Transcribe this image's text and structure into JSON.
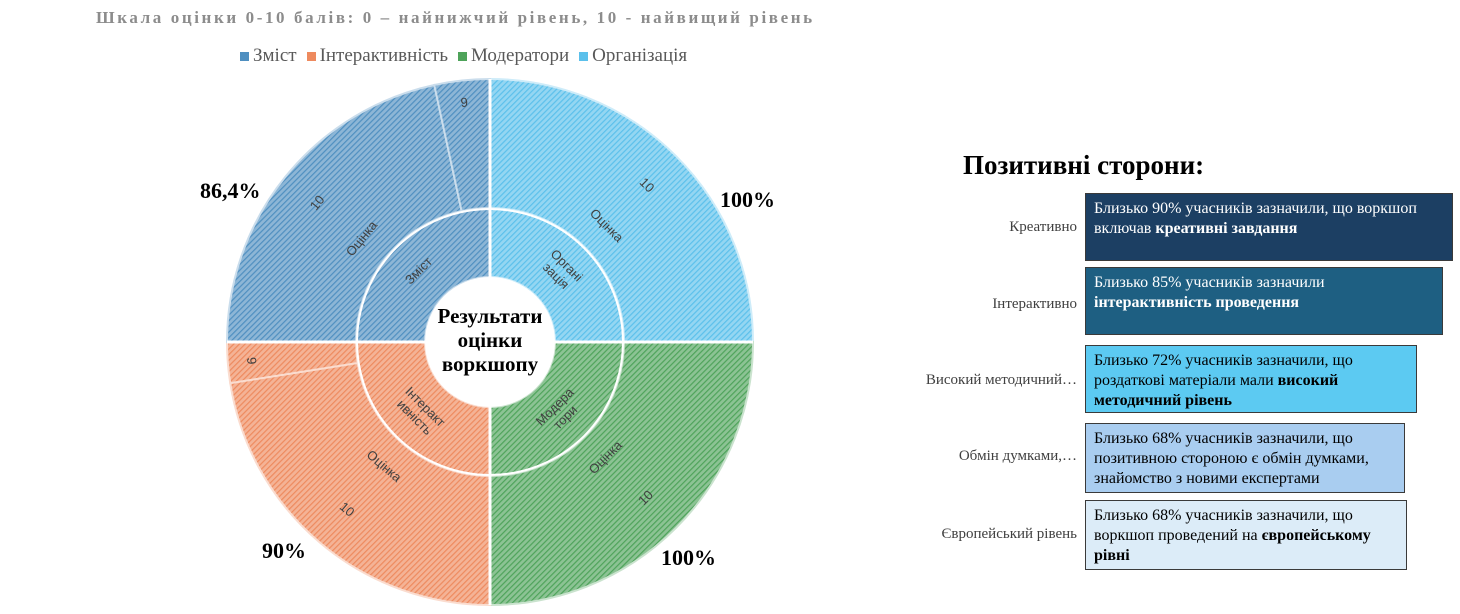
{
  "scale_title": "Шкала оцінки 0-10 балів: 0 – найнижчий рівень, 10  - найвищий рівень",
  "center_label": [
    "Результати",
    "оцінки",
    "воркшопу"
  ],
  "ring_label": "Оцінка",
  "chart_data": {
    "type": "sunburst",
    "legend": [
      {
        "name": "Зміст",
        "color": "#4f8fc0"
      },
      {
        "name": "Інтерактивність",
        "color": "#ee8a5e"
      },
      {
        "name": "Модератори",
        "color": "#4ea35a"
      },
      {
        "name": "Організація",
        "color": "#5bc0eb"
      }
    ],
    "segments": [
      {
        "name": "Організація",
        "inner_label": [
          "Органі",
          "зація"
        ],
        "color": "#5bc0eb",
        "percent_label": "100%",
        "outer": [
          {
            "score": "10",
            "share": 1.0
          }
        ]
      },
      {
        "name": "Модератори",
        "inner_label": [
          "Модера",
          "тори"
        ],
        "color": "#4ea35a",
        "percent_label": "100%",
        "outer": [
          {
            "score": "10",
            "share": 1.0
          }
        ]
      },
      {
        "name": "Інтерактивність",
        "inner_label": [
          "Інтеракт",
          "ивність"
        ],
        "color": "#ee8a5e",
        "percent_label": "90%",
        "outer": [
          {
            "score": "10",
            "share": 0.9
          },
          {
            "score": "9",
            "share": 0.1
          }
        ]
      },
      {
        "name": "Зміст",
        "inner_label": [
          "Зміст"
        ],
        "color": "#4f8fc0",
        "percent_label": "86,4%",
        "outer": [
          {
            "score": "10",
            "share": 0.864
          },
          {
            "score": "9",
            "share": 0.136
          }
        ]
      }
    ]
  },
  "positives": {
    "title": "Позитивні сторони:",
    "rows": [
      {
        "label": "Креативно",
        "text_parts": [
          {
            "text": "Близько 90% учасників зазначили, що воркшоп включав ",
            "bold": false
          },
          {
            "text": "креативні завдання",
            "bold": true
          }
        ],
        "bg": "#1c3f63",
        "fg": "#ffffff"
      },
      {
        "label": "Інтерактивно",
        "text_parts": [
          {
            "text": "Близько 85% учасників зазначили ",
            "bold": false
          },
          {
            "text": "інтерактивність проведення",
            "bold": true
          }
        ],
        "bg": "#1e5f82",
        "fg": "#ffffff"
      },
      {
        "label": "Високий методичний…",
        "text_parts": [
          {
            "text": "Близько 72% учасників зазначили, що роздаткові матеріали мали ",
            "bold": false
          },
          {
            "text": "високий методичний рівень",
            "bold": true
          }
        ],
        "bg": "#5ccaf2",
        "fg": "#000000"
      },
      {
        "label": "Обмін думками,…",
        "text_parts": [
          {
            "text": "Близько 68% учасників зазначили, що позитивною стороною є обмін думками, знайомство з новими експертами",
            "bold": false
          }
        ],
        "bg": "#a9cdf0",
        "fg": "#000000"
      },
      {
        "label": "Європейський рівень",
        "text_parts": [
          {
            "text": "Близько 68% учасників зазначили, що воркшоп проведений на ",
            "bold": false
          },
          {
            "text": "європейському рівні",
            "bold": true
          }
        ],
        "bg": "#dcecf8",
        "fg": "#000000"
      }
    ]
  }
}
